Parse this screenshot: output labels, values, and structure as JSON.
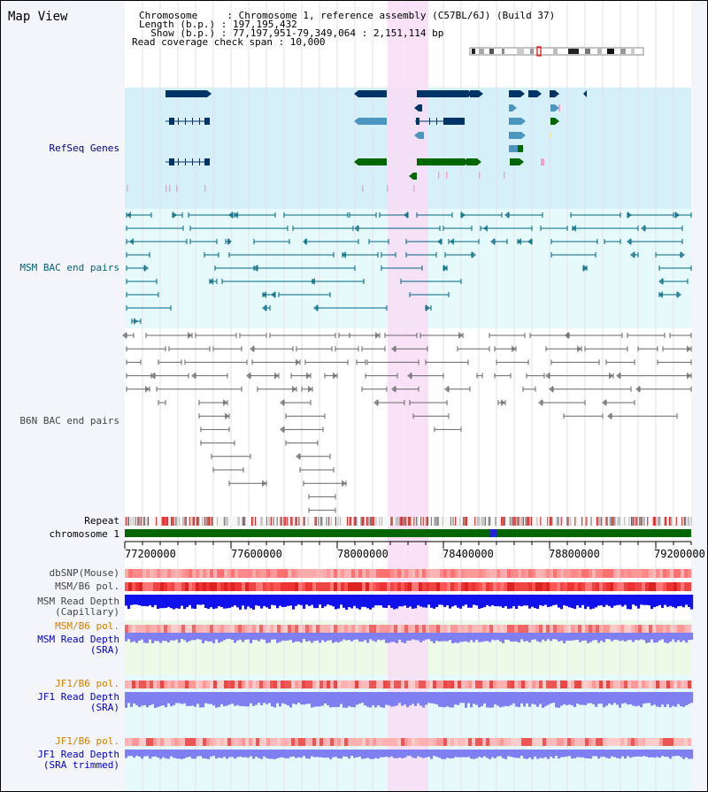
{
  "header": {
    "title": "Map View",
    "chromosome_line": "Chromosome     : Chromosome 1, reference assembly (C57BL/6J) (Build 37)",
    "length_line": "Length (b.p.) : 197,195,432",
    "show_line": "  Show (b.p.) : 77,197,951-79,349,064 : 2,151,114 bp",
    "coverage_line": "Read coverage check span : 10,000"
  },
  "tracks": {
    "refseq": "RefSeq Genes",
    "msm_bac": "MSM BAC end pairs",
    "b6n_bac": "B6N BAC end pairs",
    "repeat": "Repeat",
    "chromosome": "chromosome 1",
    "dbsnp": "dbSNP(Mouse)",
    "msm_b6_pol": "MSM/B6 pol.",
    "msm_depth_cap": "MSM Read Depth\n(Capillary)",
    "msm_b6_pol_2": "MSM/B6 pol.",
    "msm_depth_sra": "MSM Read Depth\n(SRA)",
    "jf1_b6_pol": "JF1/B6 pol.",
    "jf1_depth_sra": "JF1 Read Depth\n(SRA)",
    "jf1_b6_pol_2": "JF1/B6 pol.",
    "jf1_depth_trim": "JF1 Read Depth\n(SRA trimmed)"
  },
  "axis": {
    "ticks": [
      "77200000",
      "77600000",
      "78000000",
      "78400000",
      "78800000",
      "79200000"
    ],
    "start_bp": 77197951,
    "end_bp": 79349064
  },
  "colors": {
    "refseq_bg": "#d6f0fa",
    "msm_bg": "#e6fafc",
    "highlight": "#f8ddf6",
    "gene_dark": "#003366",
    "gene_mid": "#4a96c0",
    "gene_green": "#006600",
    "msm_line": "#006680",
    "b6n_line": "#666666",
    "chrom_green": "#006600",
    "depth_blue": "#1111ee",
    "depth_light": "#7f7ff2",
    "label_blue": "#000080",
    "label_teal": "#006677",
    "label_orange": "#d08000",
    "label_gray": "#444444"
  }
}
